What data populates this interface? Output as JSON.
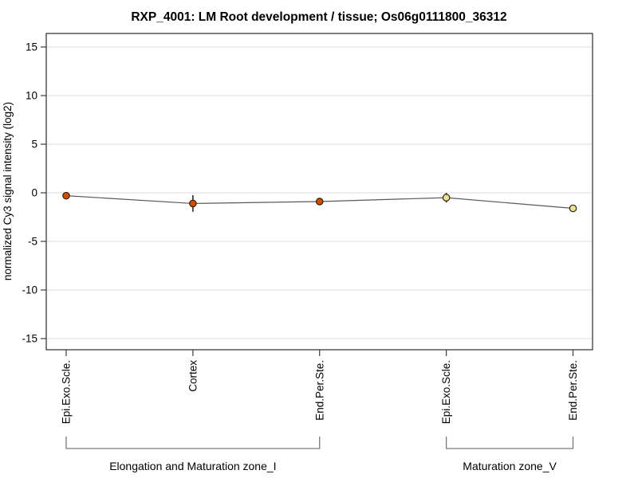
{
  "chart_data": {
    "type": "line",
    "title": "RXP_4001: LM Root development / tissue; Os06g0111800_36312",
    "ylabel": "normalized Cy3 signal intensity (log2)",
    "xlabel": "",
    "ylim": [
      -16.2,
      16.4
    ],
    "yticks": [
      15,
      10,
      5,
      0,
      -5,
      -10,
      -15
    ],
    "grid": "horizontal",
    "legend": "none",
    "categories": [
      "Epi.Exo.Scle.",
      "Cortex",
      "End.Per.Ste.",
      "Epi.Exo.Scle.",
      "End.Per.Ste."
    ],
    "series": [
      {
        "name": "normalized Cy3 signal intensity (log2)",
        "values": [
          -0.3,
          -1.1,
          -0.9,
          -0.5,
          -1.6
        ],
        "errors": [
          0.15,
          0.85,
          0.35,
          0.5,
          0.12
        ]
      }
    ],
    "groups": [
      {
        "label": "Elongation and Maturation zone_I",
        "indices": [
          0,
          1,
          2
        ],
        "point_color": "#cc4f08"
      },
      {
        "label": "Maturation zone_V",
        "indices": [
          3,
          4
        ],
        "point_color": "#e4e49c"
      }
    ],
    "colors": {
      "line": "#5a5a5a",
      "point_border": "#3a2002",
      "error_bar": "#33261a",
      "gridline": "#e8e8e8",
      "box_border": "#3c3c3c",
      "bracket": "#7a7a7a",
      "background": "#ffffff"
    }
  }
}
